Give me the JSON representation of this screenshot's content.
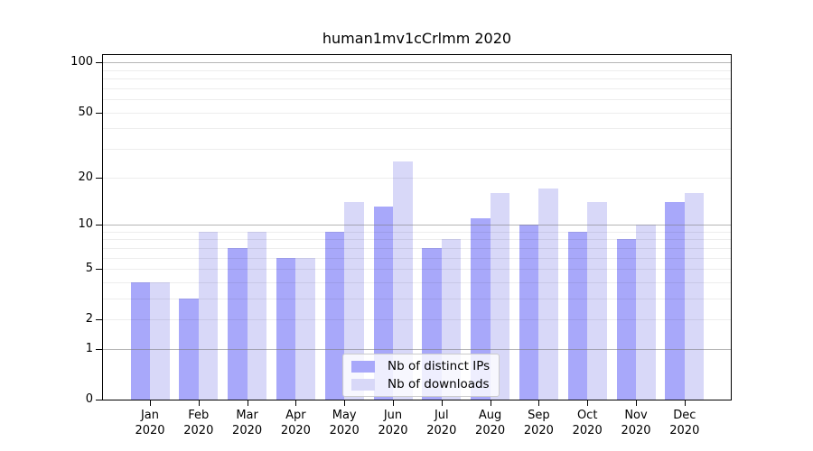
{
  "figure": {
    "title": "human1mv1cCrlmm 2020"
  },
  "colors": {
    "distinct_ips": "#a8a8fa",
    "downloads": "#d8d8f8",
    "grid_major": "rgba(120,120,120,0.55)",
    "grid_minor": "rgba(0,0,0,0.07)",
    "spine": "#000000"
  },
  "chart_data": {
    "type": "bar",
    "title": "human1mv1cCrlmm 2020",
    "categories": [
      "Jan 2020",
      "Feb 2020",
      "Mar 2020",
      "Apr 2020",
      "May 2020",
      "Jun 2020",
      "Jul 2020",
      "Aug 2020",
      "Sep 2020",
      "Oct 2020",
      "Nov 2020",
      "Dec 2020"
    ],
    "series": [
      {
        "name": "Nb of distinct IPs",
        "color": "#a8a8fa",
        "values": [
          4,
          3,
          7,
          6,
          9,
          13,
          7,
          11,
          10,
          9,
          8,
          14
        ]
      },
      {
        "name": "Nb of downloads",
        "color": "#d8d8f8",
        "values": [
          4,
          9,
          9,
          6,
          14,
          25,
          8,
          16,
          17,
          14,
          10,
          16
        ]
      }
    ],
    "xlabel": "",
    "ylabel": "",
    "yscale": "log1p",
    "yticks": [
      0,
      1,
      2,
      5,
      10,
      20,
      50,
      100
    ],
    "ylim": [
      0,
      113
    ],
    "grid": true,
    "grid_major_at": [
      1,
      10,
      100
    ],
    "grid_minor_at": [
      2,
      3,
      4,
      5,
      6,
      7,
      8,
      9,
      20,
      30,
      40,
      50,
      60,
      70,
      80,
      90
    ],
    "legend_position": "lower center"
  }
}
